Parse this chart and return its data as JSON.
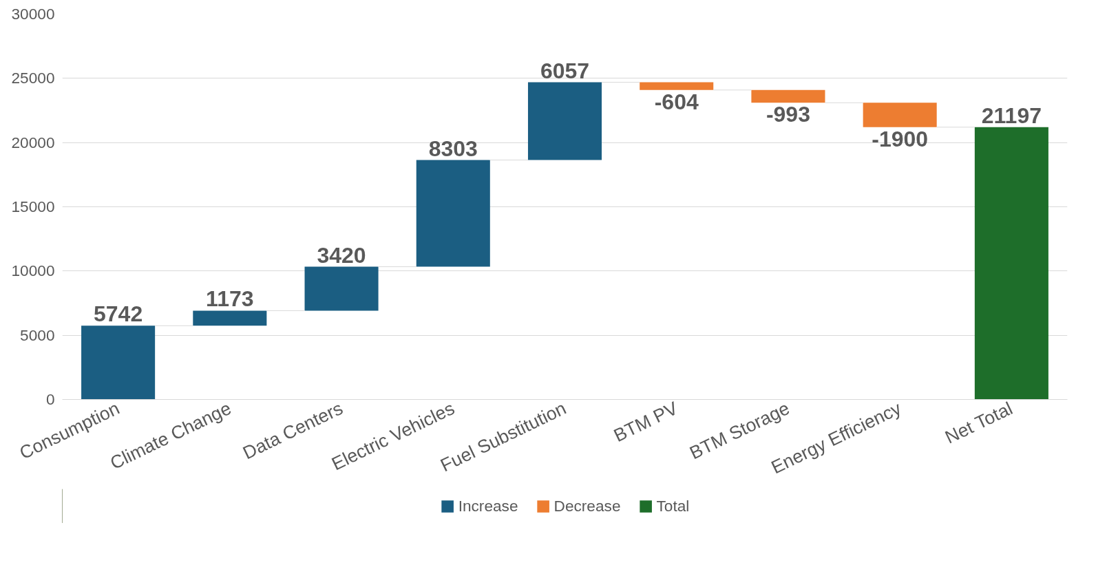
{
  "chart_data": {
    "type": "bar",
    "categories": [
      "Consumption",
      "Climate Change",
      "Data Centers",
      "Electric Vehicles",
      "Fuel Substitution",
      "BTM PV",
      "BTM Storage",
      "Energy Efficiency",
      "Net Total"
    ],
    "series": [
      {
        "name": "Increase",
        "color": "#1b5e82",
        "values": [
          5742,
          1173,
          3420,
          8303,
          6057,
          null,
          null,
          null,
          null
        ],
        "base": [
          0,
          5742,
          6915,
          10335,
          18638,
          null,
          null,
          null,
          null
        ]
      },
      {
        "name": "Decrease",
        "color": "#ed7d31",
        "values": [
          null,
          null,
          null,
          null,
          null,
          -604,
          -993,
          -1900,
          null
        ],
        "base": [
          null,
          null,
          null,
          null,
          null,
          24695,
          24091,
          23098,
          null
        ]
      },
      {
        "name": "Total",
        "color": "#1e6e2a",
        "values": [
          null,
          null,
          null,
          null,
          null,
          null,
          null,
          null,
          21197
        ],
        "base": [
          null,
          null,
          null,
          null,
          null,
          null,
          null,
          null,
          0
        ]
      }
    ],
    "ylim": [
      0,
      30000
    ],
    "yticks": [
      0,
      5000,
      10000,
      15000,
      20000,
      25000,
      30000
    ],
    "grid": "y",
    "legend": "bottom",
    "data_labels": true
  }
}
